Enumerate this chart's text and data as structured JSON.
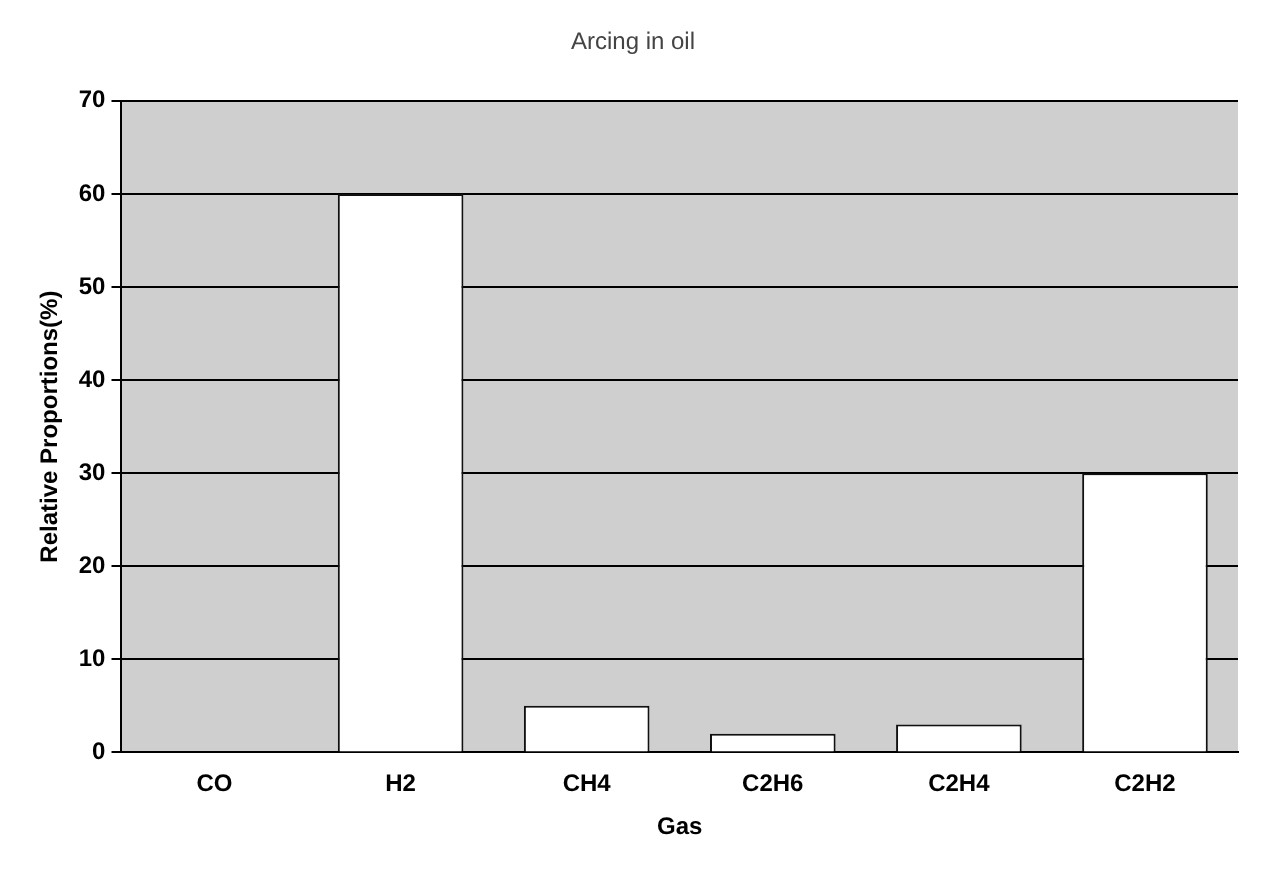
{
  "chart_data": {
    "type": "bar",
    "title": "Arcing in oil",
    "xlabel": "Gas",
    "ylabel": "Relative Proportions(%)",
    "categories": [
      "CO",
      "H2",
      "CH4",
      "C2H6",
      "C2H4",
      "C2H2"
    ],
    "values": [
      0,
      60,
      5,
      2,
      3,
      30
    ],
    "color": "#ffffff",
    "ylim": [
      0,
      70
    ],
    "yticks": [
      0,
      10,
      20,
      30,
      40,
      50,
      60,
      70
    ],
    "grid": "y",
    "legend": false
  }
}
